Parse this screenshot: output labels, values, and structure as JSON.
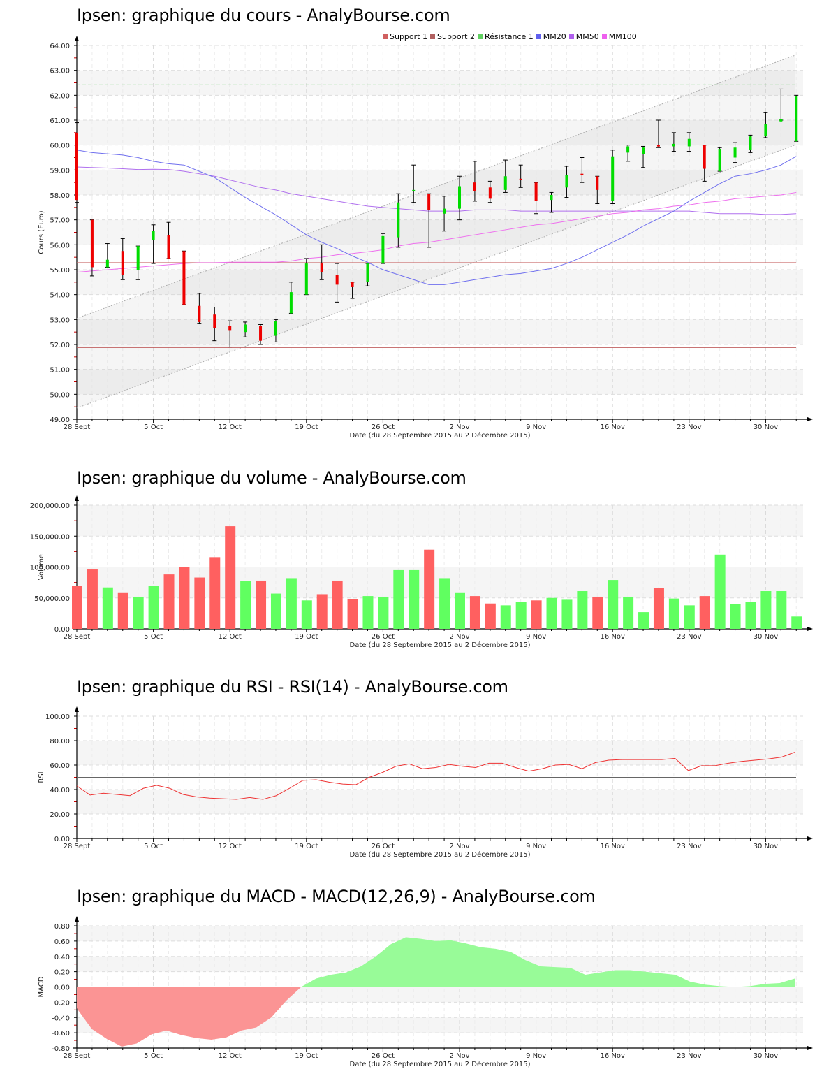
{
  "colors": {
    "up": "#00dd00",
    "down": "#ee0000",
    "vol_up": "#60ff60",
    "vol_down": "#ff6060",
    "mm20": "#7070ee",
    "mm50": "#b070ee",
    "mm100": "#ee70ee",
    "support": "#cc7070",
    "resistance": "#60cc60",
    "rsi": "#ee3333",
    "macd_pos": "#98fb98",
    "macd_neg": "#fb9494",
    "grid": "#dddddd",
    "band": "#f5f5f5"
  },
  "x_axis": {
    "ticks": [
      {
        "label": "28 Sept",
        "index": 0
      },
      {
        "label": "5 Oct",
        "index": 5
      },
      {
        "label": "12 Oct",
        "index": 10
      },
      {
        "label": "19 Oct",
        "index": 15
      },
      {
        "label": "26 Oct",
        "index": 20
      },
      {
        "label": "2 Nov",
        "index": 25
      },
      {
        "label": "9 Nov",
        "index": 30
      },
      {
        "label": "16 Nov",
        "index": 35
      },
      {
        "label": "23 Nov",
        "index": 40
      },
      {
        "label": "30 Nov",
        "index": 45
      }
    ],
    "label": "Date (du 28 Septembre 2015 au 2 Décembre 2015)"
  },
  "legend": [
    {
      "label": "Support 1",
      "color": "#d06060"
    },
    {
      "label": "Support 2",
      "color": "#b06060"
    },
    {
      "label": "Résistance 1",
      "color": "#60d060"
    },
    {
      "label": "MM20",
      "color": "#6060ee"
    },
    {
      "label": "MM50",
      "color": "#b060ee"
    },
    {
      "label": "MM100",
      "color": "#ee60ee"
    }
  ],
  "titles": {
    "price": "Ipsen: graphique du cours - AnalyBourse.com",
    "volume": "Ipsen: graphique du volume - AnalyBourse.com",
    "rsi": "Ipsen: graphique du RSI - RSI(14) - AnalyBourse.com",
    "macd": "Ipsen: graphique du MACD - MACD(12,26,9) - AnalyBourse.com"
  },
  "chart_data": [
    {
      "type": "candlestick",
      "title": "Ipsen: graphique du cours - AnalyBourse.com",
      "xlabel": "Date (du 28 Septembre 2015 au 2 Décembre 2015)",
      "ylabel": "Cours (Euro)",
      "ylim": [
        49,
        64
      ],
      "yticks": [
        "49.00",
        "50.00",
        "51.00",
        "52.00",
        "53.00",
        "54.00",
        "55.00",
        "56.00",
        "57.00",
        "58.00",
        "59.00",
        "60.00",
        "61.00",
        "62.00",
        "63.00",
        "64.00"
      ],
      "legend": [
        "Support 1",
        "Support 2",
        "Résistance 1",
        "MM20",
        "MM50",
        "MM100"
      ],
      "support_1": 55.28,
      "support_2": 51.88,
      "resistance_1": 62.42,
      "trend_channel": {
        "upper": [
          53.05,
          63.6
        ],
        "lower": [
          49.45,
          60.0
        ]
      },
      "candles": [
        {
          "o": 60.5,
          "h": 60.9,
          "l": 57.7,
          "c": 57.8
        },
        {
          "o": 57.0,
          "h": 57.0,
          "l": 54.75,
          "c": 55.1
        },
        {
          "o": 55.1,
          "h": 56.05,
          "l": 55.1,
          "c": 55.4
        },
        {
          "o": 55.75,
          "h": 56.25,
          "l": 54.6,
          "c": 54.8
        },
        {
          "o": 55.0,
          "h": 55.95,
          "l": 54.6,
          "c": 55.95
        },
        {
          "o": 56.2,
          "h": 56.8,
          "l": 55.25,
          "c": 56.55
        },
        {
          "o": 56.4,
          "h": 56.9,
          "l": 55.45,
          "c": 55.45
        },
        {
          "o": 55.75,
          "h": 55.75,
          "l": 53.6,
          "c": 53.6
        },
        {
          "o": 53.55,
          "h": 54.05,
          "l": 52.85,
          "c": 52.9
        },
        {
          "o": 53.2,
          "h": 53.5,
          "l": 52.15,
          "c": 52.65
        },
        {
          "o": 52.75,
          "h": 52.95,
          "l": 51.9,
          "c": 52.55
        },
        {
          "o": 52.5,
          "h": 52.9,
          "l": 52.3,
          "c": 52.8
        },
        {
          "o": 52.75,
          "h": 52.8,
          "l": 52.0,
          "c": 52.15
        },
        {
          "o": 52.35,
          "h": 53.0,
          "l": 52.1,
          "c": 52.95
        },
        {
          "o": 53.25,
          "h": 54.5,
          "l": 53.25,
          "c": 54.1
        },
        {
          "o": 54.0,
          "h": 55.45,
          "l": 54.0,
          "c": 55.25
        },
        {
          "o": 55.25,
          "h": 56.0,
          "l": 54.6,
          "c": 54.9
        },
        {
          "o": 54.8,
          "h": 55.25,
          "l": 53.7,
          "c": 54.4
        },
        {
          "o": 54.5,
          "h": 54.5,
          "l": 53.85,
          "c": 54.3
        },
        {
          "o": 54.5,
          "h": 55.25,
          "l": 54.35,
          "c": 55.25
        },
        {
          "o": 55.25,
          "h": 56.45,
          "l": 55.25,
          "c": 56.35
        },
        {
          "o": 56.3,
          "h": 58.05,
          "l": 55.9,
          "c": 57.7
        },
        {
          "o": 58.15,
          "h": 59.2,
          "l": 57.7,
          "c": 58.2
        },
        {
          "o": 58.05,
          "h": 58.05,
          "l": 55.9,
          "c": 57.4
        },
        {
          "o": 57.25,
          "h": 57.95,
          "l": 56.55,
          "c": 57.45
        },
        {
          "o": 57.45,
          "h": 58.75,
          "l": 57.0,
          "c": 58.35
        },
        {
          "o": 58.5,
          "h": 59.35,
          "l": 57.75,
          "c": 58.15
        },
        {
          "o": 58.3,
          "h": 58.55,
          "l": 57.7,
          "c": 57.85
        },
        {
          "o": 58.2,
          "h": 59.4,
          "l": 58.1,
          "c": 58.75
        },
        {
          "o": 58.65,
          "h": 59.2,
          "l": 58.3,
          "c": 58.6
        },
        {
          "o": 58.5,
          "h": 58.5,
          "l": 57.25,
          "c": 57.75
        },
        {
          "o": 57.8,
          "h": 58.1,
          "l": 57.3,
          "c": 58.0
        },
        {
          "o": 58.3,
          "h": 59.15,
          "l": 57.9,
          "c": 58.8
        },
        {
          "o": 58.85,
          "h": 59.5,
          "l": 58.5,
          "c": 58.8
        },
        {
          "o": 58.75,
          "h": 58.75,
          "l": 57.65,
          "c": 58.2
        },
        {
          "o": 57.75,
          "h": 59.8,
          "l": 57.65,
          "c": 59.55
        },
        {
          "o": 59.7,
          "h": 60.0,
          "l": 59.35,
          "c": 59.95
        },
        {
          "o": 59.65,
          "h": 59.95,
          "l": 59.1,
          "c": 59.9
        },
        {
          "o": 60.0,
          "h": 61.0,
          "l": 59.9,
          "c": 59.95
        },
        {
          "o": 59.95,
          "h": 60.5,
          "l": 59.75,
          "c": 60.05
        },
        {
          "o": 59.95,
          "h": 60.5,
          "l": 59.75,
          "c": 60.25
        },
        {
          "o": 60.0,
          "h": 60.0,
          "l": 58.55,
          "c": 59.05
        },
        {
          "o": 58.95,
          "h": 59.9,
          "l": 58.95,
          "c": 59.85
        },
        {
          "o": 59.5,
          "h": 60.1,
          "l": 59.3,
          "c": 59.9
        },
        {
          "o": 59.8,
          "h": 60.4,
          "l": 59.7,
          "c": 60.35
        },
        {
          "o": 60.35,
          "h": 61.3,
          "l": 60.3,
          "c": 60.85
        },
        {
          "o": 60.95,
          "h": 62.25,
          "l": 61.0,
          "c": 61.05
        },
        {
          "o": 60.15,
          "h": 62.0,
          "l": 60.15,
          "c": 61.95
        }
      ],
      "mm20": [
        59.8,
        59.7,
        59.65,
        59.6,
        59.5,
        59.35,
        59.25,
        59.2,
        58.95,
        58.7,
        58.3,
        57.9,
        57.55,
        57.2,
        56.8,
        56.4,
        56.1,
        55.85,
        55.55,
        55.3,
        55.0,
        54.8,
        54.6,
        54.4,
        54.4,
        54.5,
        54.6,
        54.7,
        54.8,
        54.85,
        54.95,
        55.05,
        55.25,
        55.5,
        55.8,
        56.1,
        56.4,
        56.75,
        57.05,
        57.35,
        57.75,
        58.1,
        58.45,
        58.75,
        58.85,
        59.0,
        59.2,
        59.55
      ],
      "mm50": [
        59.12,
        59.1,
        59.08,
        59.05,
        59.02,
        59.03,
        59.02,
        58.95,
        58.85,
        58.75,
        58.6,
        58.45,
        58.3,
        58.2,
        58.05,
        57.95,
        57.85,
        57.75,
        57.65,
        57.55,
        57.5,
        57.45,
        57.4,
        57.35,
        57.35,
        57.35,
        57.4,
        57.4,
        57.4,
        57.35,
        57.35,
        57.35,
        57.35,
        57.35,
        57.35,
        57.35,
        57.35,
        57.35,
        57.35,
        57.35,
        57.35,
        57.3,
        57.25,
        57.25,
        57.25,
        57.22,
        57.22,
        57.25
      ],
      "mm100": [
        54.9,
        54.95,
        55.0,
        55.05,
        55.1,
        55.15,
        55.2,
        55.25,
        55.28,
        55.28,
        55.3,
        55.3,
        55.3,
        55.3,
        55.35,
        55.45,
        55.5,
        55.6,
        55.65,
        55.72,
        55.8,
        55.95,
        56.05,
        56.1,
        56.2,
        56.3,
        56.4,
        56.5,
        56.6,
        56.7,
        56.8,
        56.85,
        56.95,
        57.05,
        57.15,
        57.25,
        57.3,
        57.4,
        57.45,
        57.55,
        57.6,
        57.7,
        57.75,
        57.85,
        57.9,
        57.95,
        58.0,
        58.1
      ]
    },
    {
      "type": "bar",
      "title": "Ipsen: graphique du volume - AnalyBourse.com",
      "xlabel": "Date (du 28 Septembre 2015 au 2 Décembre 2015)",
      "ylabel": "Volume",
      "ylim": [
        0,
        200000
      ],
      "yticks": [
        "0.00",
        "50,000.00",
        "100,000.00",
        "150,000.00",
        "200,000.00"
      ],
      "values": [
        69000,
        96000,
        67000,
        59000,
        52000,
        69000,
        88000,
        100000,
        83000,
        116000,
        166000,
        77000,
        78000,
        57000,
        82000,
        46000,
        56000,
        78000,
        48000,
        53000,
        52000,
        95000,
        95000,
        128000,
        82000,
        59000,
        53000,
        41000,
        38000,
        43000,
        46000,
        50000,
        47000,
        61000,
        52000,
        79000,
        52000,
        27000,
        66000,
        49000,
        38000,
        53000,
        120000,
        40000,
        43000,
        61000,
        61000,
        20000
      ],
      "colors": [
        "down",
        "down",
        "up",
        "down",
        "up",
        "up",
        "down",
        "down",
        "down",
        "down",
        "down",
        "up",
        "down",
        "up",
        "up",
        "up",
        "down",
        "down",
        "down",
        "up",
        "up",
        "up",
        "up",
        "down",
        "up",
        "up",
        "down",
        "down",
        "up",
        "up",
        "down",
        "up",
        "up",
        "up",
        "down",
        "up",
        "up",
        "up",
        "down",
        "up",
        "up",
        "down",
        "up",
        "up",
        "up",
        "up",
        "up",
        "up"
      ]
    },
    {
      "type": "line",
      "title": "Ipsen: graphique du RSI - RSI(14) - AnalyBourse.com",
      "xlabel": "Date (du 28 Septembre 2015 au 2 Décembre 2015)",
      "ylabel": "RSI",
      "ylim": [
        0,
        100
      ],
      "yticks": [
        "0.00",
        "20.00",
        "40.00",
        "60.00",
        "80.00",
        "100.00"
      ],
      "reference_line": 50,
      "values": [
        43,
        35.5,
        37,
        36,
        35,
        41,
        43.5,
        41,
        36,
        34,
        33,
        32.5,
        32,
        33.5,
        32,
        35,
        41,
        47.5,
        48,
        46,
        44.5,
        44,
        50,
        54,
        59,
        61,
        57,
        58,
        60.5,
        59,
        58,
        61.5,
        61.5,
        58,
        55,
        57,
        60,
        60.5,
        57,
        62,
        64,
        64.5,
        64.5,
        64.5,
        64.5,
        65.5,
        55.5,
        59.5,
        59.5,
        61.5,
        63,
        64,
        65,
        66.5,
        70.5
      ]
    },
    {
      "type": "area",
      "title": "Ipsen: graphique du MACD - MACD(12,26,9) - AnalyBourse.com",
      "xlabel": "Date (du 28 Septembre 2015 au 2 Décembre 2015)",
      "ylabel": "MACD",
      "ylim": [
        -0.8,
        0.8
      ],
      "yticks": [
        "-0.80",
        "-0.60",
        "-0.40",
        "-0.20",
        "0.00",
        "0.20",
        "0.40",
        "0.60",
        "0.80"
      ],
      "values": [
        -0.28,
        -0.55,
        -0.68,
        -0.78,
        -0.74,
        -0.62,
        -0.57,
        -0.63,
        -0.67,
        -0.69,
        -0.66,
        -0.57,
        -0.53,
        -0.4,
        -0.18,
        0.0,
        0.11,
        0.16,
        0.19,
        0.27,
        0.4,
        0.56,
        0.65,
        0.63,
        0.6,
        0.61,
        0.57,
        0.52,
        0.5,
        0.46,
        0.35,
        0.27,
        0.26,
        0.25,
        0.16,
        0.19,
        0.22,
        0.22,
        0.2,
        0.18,
        0.16,
        0.07,
        0.03,
        0.01,
        0.0,
        0.01,
        0.04,
        0.05,
        0.11
      ]
    }
  ]
}
